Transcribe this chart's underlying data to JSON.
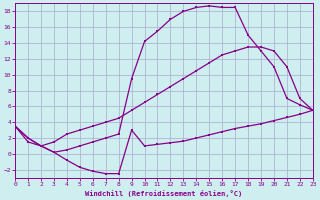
{
  "xlabel": "Windchill (Refroidissement éolien,°C)",
  "xlim": [
    0,
    23
  ],
  "ylim": [
    -3,
    19
  ],
  "xticks": [
    0,
    1,
    2,
    3,
    4,
    5,
    6,
    7,
    8,
    9,
    10,
    11,
    12,
    13,
    14,
    15,
    16,
    17,
    18,
    19,
    20,
    21,
    22,
    23
  ],
  "yticks": [
    -2,
    0,
    2,
    4,
    6,
    8,
    10,
    12,
    14,
    16,
    18
  ],
  "bg_color": "#ceeef0",
  "grid_color": "#aaaacc",
  "line_color": "#880088",
  "curve1_x": [
    0,
    1,
    2,
    3,
    4,
    5,
    6,
    7,
    8,
    9,
    10,
    11,
    12,
    13,
    14,
    15,
    16,
    17,
    18,
    19,
    20,
    21,
    22,
    23
  ],
  "curve1_y": [
    3.5,
    1.5,
    1.0,
    0.2,
    -0.8,
    -1.7,
    -2.2,
    -2.5,
    -2.5,
    3.0,
    1.0,
    1.2,
    1.4,
    1.6,
    2.0,
    2.4,
    2.8,
    3.2,
    3.5,
    3.8,
    4.2,
    4.6,
    5.0,
    5.5
  ],
  "curve2_x": [
    0,
    1,
    2,
    3,
    4,
    5,
    6,
    7,
    8,
    9,
    10,
    11,
    12,
    13,
    14,
    15,
    16,
    17,
    18,
    19,
    20,
    21,
    22,
    23
  ],
  "curve2_y": [
    3.5,
    2.0,
    1.0,
    0.2,
    0.5,
    1.0,
    1.5,
    2.0,
    2.5,
    9.5,
    14.2,
    15.5,
    17.0,
    18.0,
    18.5,
    18.7,
    18.5,
    18.5,
    15.0,
    13.0,
    11.0,
    7.0,
    6.2,
    5.5
  ],
  "curve3_x": [
    0,
    1,
    2,
    3,
    4,
    5,
    6,
    7,
    8,
    9,
    10,
    11,
    12,
    13,
    14,
    15,
    16,
    17,
    18,
    19,
    20,
    21,
    22,
    23
  ],
  "curve3_y": [
    3.5,
    2.0,
    1.0,
    1.5,
    2.5,
    3.0,
    3.5,
    4.0,
    4.5,
    5.5,
    6.5,
    7.5,
    8.5,
    9.5,
    10.5,
    11.5,
    12.5,
    13.0,
    13.5,
    13.5,
    13.0,
    11.0,
    7.0,
    5.5
  ]
}
